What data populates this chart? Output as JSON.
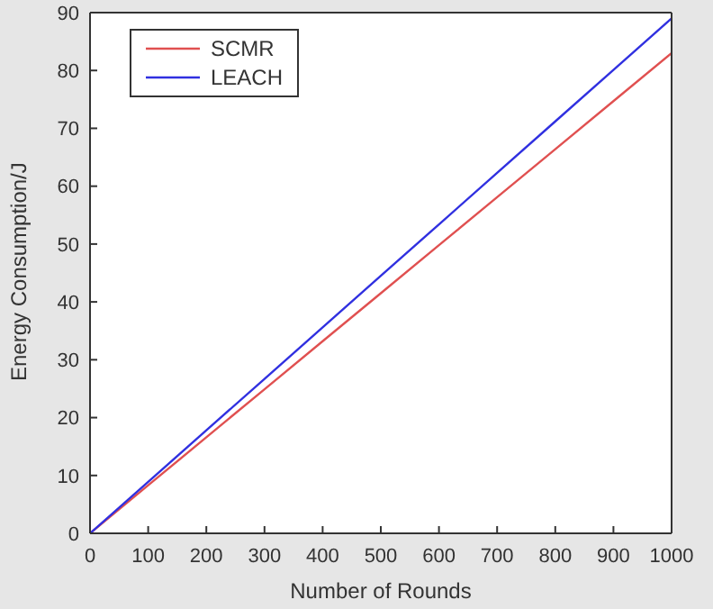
{
  "chart_data": {
    "type": "line",
    "xlabel": "Number of Rounds",
    "ylabel": "Energy Consumption/J",
    "x": [
      0,
      100,
      200,
      300,
      400,
      500,
      600,
      700,
      800,
      900,
      1000
    ],
    "series": [
      {
        "name": "SCMR",
        "color": "#e05050",
        "values": [
          0,
          8.3,
          16.6,
          24.9,
          33.2,
          41.5,
          49.8,
          58.1,
          66.4,
          74.7,
          83
        ]
      },
      {
        "name": "LEACH",
        "color": "#3030e0",
        "values": [
          0,
          8.9,
          17.8,
          26.7,
          35.6,
          44.5,
          53.4,
          62.3,
          71.2,
          80.1,
          89
        ]
      }
    ],
    "xlim": [
      0,
      1000
    ],
    "xticks": [
      0,
      100,
      200,
      300,
      400,
      500,
      600,
      700,
      800,
      900,
      1000
    ],
    "ylim": [
      0,
      90
    ],
    "yticks": [
      0,
      10,
      20,
      30,
      40,
      50,
      60,
      70,
      80,
      90
    ],
    "grid": false,
    "legend": "top left",
    "marker": "none",
    "line_style": "solid"
  }
}
